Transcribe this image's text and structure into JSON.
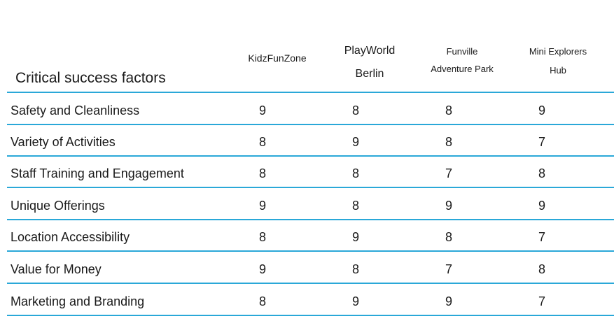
{
  "table": {
    "title": "Critical success factors",
    "columns": [
      {
        "lines": [
          "KidzFunZone"
        ]
      },
      {
        "lines": [
          "PlayWorld",
          "Berlin"
        ]
      },
      {
        "lines": [
          "Funville",
          "Adventure Park"
        ]
      },
      {
        "lines": [
          "Mini Explorers",
          "Hub"
        ]
      }
    ],
    "rows": [
      {
        "factor": "Safety and Cleanliness",
        "scores": [
          "9",
          "8",
          "8",
          "9"
        ]
      },
      {
        "factor": "Variety of Activities",
        "scores": [
          "8",
          "9",
          "8",
          "7"
        ]
      },
      {
        "factor": "Staff Training and Engagement",
        "scores": [
          "8",
          "8",
          "7",
          "8"
        ]
      },
      {
        "factor": "Unique Offerings",
        "scores": [
          "9",
          "8",
          "9",
          "9"
        ]
      },
      {
        "factor": "Location Accessibility",
        "scores": [
          "8",
          "9",
          "8",
          "7"
        ]
      },
      {
        "factor": "Value for Money",
        "scores": [
          "9",
          "8",
          "7",
          "8"
        ]
      },
      {
        "factor": "Marketing and Branding",
        "scores": [
          "8",
          "9",
          "9",
          "7"
        ]
      }
    ],
    "line_color": "#2aa8d8"
  }
}
